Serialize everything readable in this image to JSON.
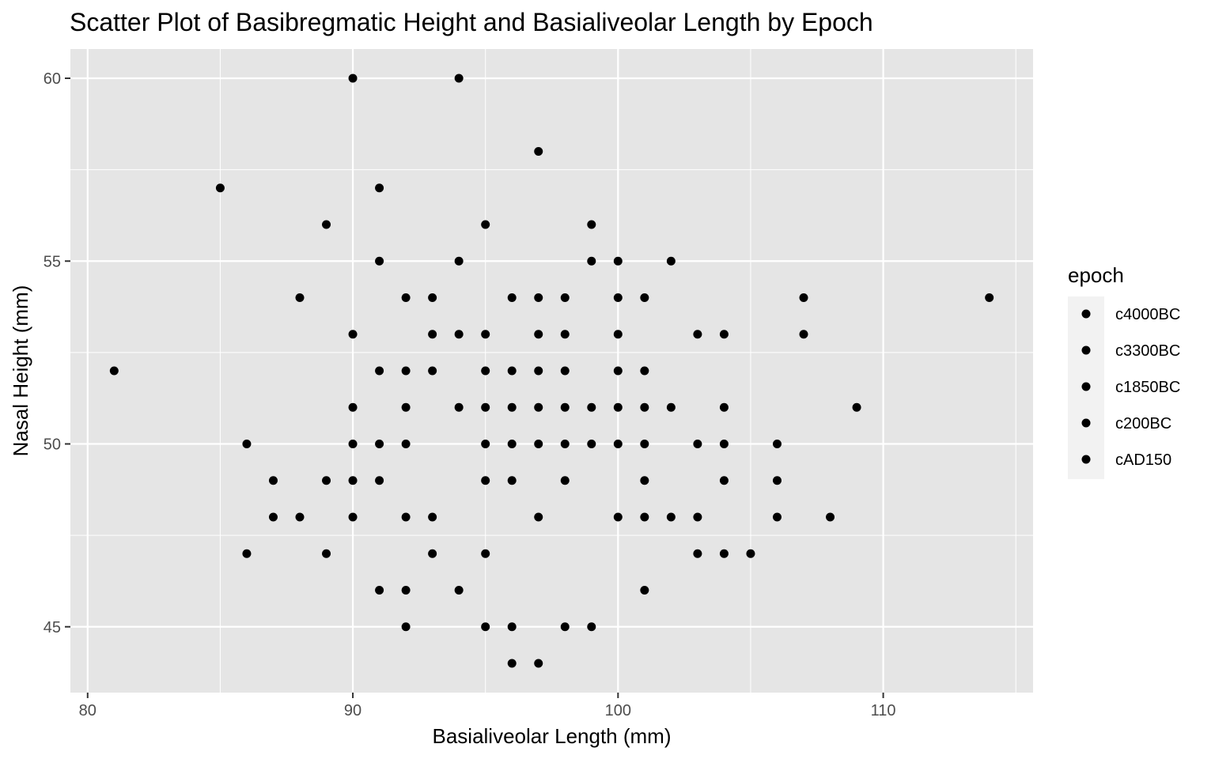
{
  "chart_data": {
    "type": "scatter",
    "title": "Scatter Plot of Basibregmatic Height and Basialiveolar Length by Epoch",
    "xlabel": "Basialiveolar Length (mm)",
    "ylabel": "Nasal Height (mm)",
    "xlim": [
      79.35,
      115.65
    ],
    "ylim": [
      43.2,
      60.8
    ],
    "x_ticks": [
      80,
      90,
      100,
      110
    ],
    "y_ticks": [
      45,
      50,
      55,
      60
    ],
    "grid": true,
    "legend": {
      "title": "epoch",
      "position": "right",
      "entries": [
        "c4000BC",
        "c3300BC",
        "c1850BC",
        "c200BC",
        "cAD150"
      ]
    },
    "point_color": "#000000",
    "panel_color": "#e5e5e5",
    "grid_color": "#ffffff",
    "points": [
      [
        90,
        60
      ],
      [
        94,
        60
      ],
      [
        97,
        58
      ],
      [
        85,
        57
      ],
      [
        91,
        57
      ],
      [
        89,
        56
      ],
      [
        95,
        56
      ],
      [
        99,
        56
      ],
      [
        91,
        55
      ],
      [
        94,
        55
      ],
      [
        99,
        55
      ],
      [
        100,
        55
      ],
      [
        102,
        55
      ],
      [
        88,
        54
      ],
      [
        92,
        54
      ],
      [
        93,
        54
      ],
      [
        96,
        54
      ],
      [
        97,
        54
      ],
      [
        98,
        54
      ],
      [
        100,
        54
      ],
      [
        101,
        54
      ],
      [
        107,
        54
      ],
      [
        114,
        54
      ],
      [
        90,
        53
      ],
      [
        93,
        53
      ],
      [
        94,
        53
      ],
      [
        95,
        53
      ],
      [
        97,
        53
      ],
      [
        98,
        53
      ],
      [
        100,
        53
      ],
      [
        103,
        53
      ],
      [
        104,
        53
      ],
      [
        107,
        53
      ],
      [
        81,
        52
      ],
      [
        91,
        52
      ],
      [
        92,
        52
      ],
      [
        93,
        52
      ],
      [
        95,
        52
      ],
      [
        96,
        52
      ],
      [
        97,
        52
      ],
      [
        98,
        52
      ],
      [
        100,
        52
      ],
      [
        101,
        52
      ],
      [
        90,
        51
      ],
      [
        92,
        51
      ],
      [
        94,
        51
      ],
      [
        95,
        51
      ],
      [
        96,
        51
      ],
      [
        97,
        51
      ],
      [
        98,
        51
      ],
      [
        99,
        51
      ],
      [
        100,
        51
      ],
      [
        101,
        51
      ],
      [
        102,
        51
      ],
      [
        104,
        51
      ],
      [
        109,
        51
      ],
      [
        86,
        50
      ],
      [
        90,
        50
      ],
      [
        91,
        50
      ],
      [
        92,
        50
      ],
      [
        95,
        50
      ],
      [
        96,
        50
      ],
      [
        97,
        50
      ],
      [
        98,
        50
      ],
      [
        99,
        50
      ],
      [
        100,
        50
      ],
      [
        101,
        50
      ],
      [
        103,
        50
      ],
      [
        104,
        50
      ],
      [
        106,
        50
      ],
      [
        87,
        49
      ],
      [
        89,
        49
      ],
      [
        90,
        49
      ],
      [
        91,
        49
      ],
      [
        95,
        49
      ],
      [
        96,
        49
      ],
      [
        98,
        49
      ],
      [
        101,
        49
      ],
      [
        104,
        49
      ],
      [
        106,
        49
      ],
      [
        87,
        48
      ],
      [
        88,
        48
      ],
      [
        90,
        48
      ],
      [
        92,
        48
      ],
      [
        93,
        48
      ],
      [
        97,
        48
      ],
      [
        100,
        48
      ],
      [
        101,
        48
      ],
      [
        102,
        48
      ],
      [
        103,
        48
      ],
      [
        106,
        48
      ],
      [
        108,
        48
      ],
      [
        86,
        47
      ],
      [
        89,
        47
      ],
      [
        93,
        47
      ],
      [
        95,
        47
      ],
      [
        103,
        47
      ],
      [
        104,
        47
      ],
      [
        105,
        47
      ],
      [
        91,
        46
      ],
      [
        92,
        46
      ],
      [
        94,
        46
      ],
      [
        101,
        46
      ],
      [
        92,
        45
      ],
      [
        95,
        45
      ],
      [
        96,
        45
      ],
      [
        98,
        45
      ],
      [
        99,
        45
      ],
      [
        96,
        44
      ],
      [
        97,
        44
      ]
    ]
  }
}
